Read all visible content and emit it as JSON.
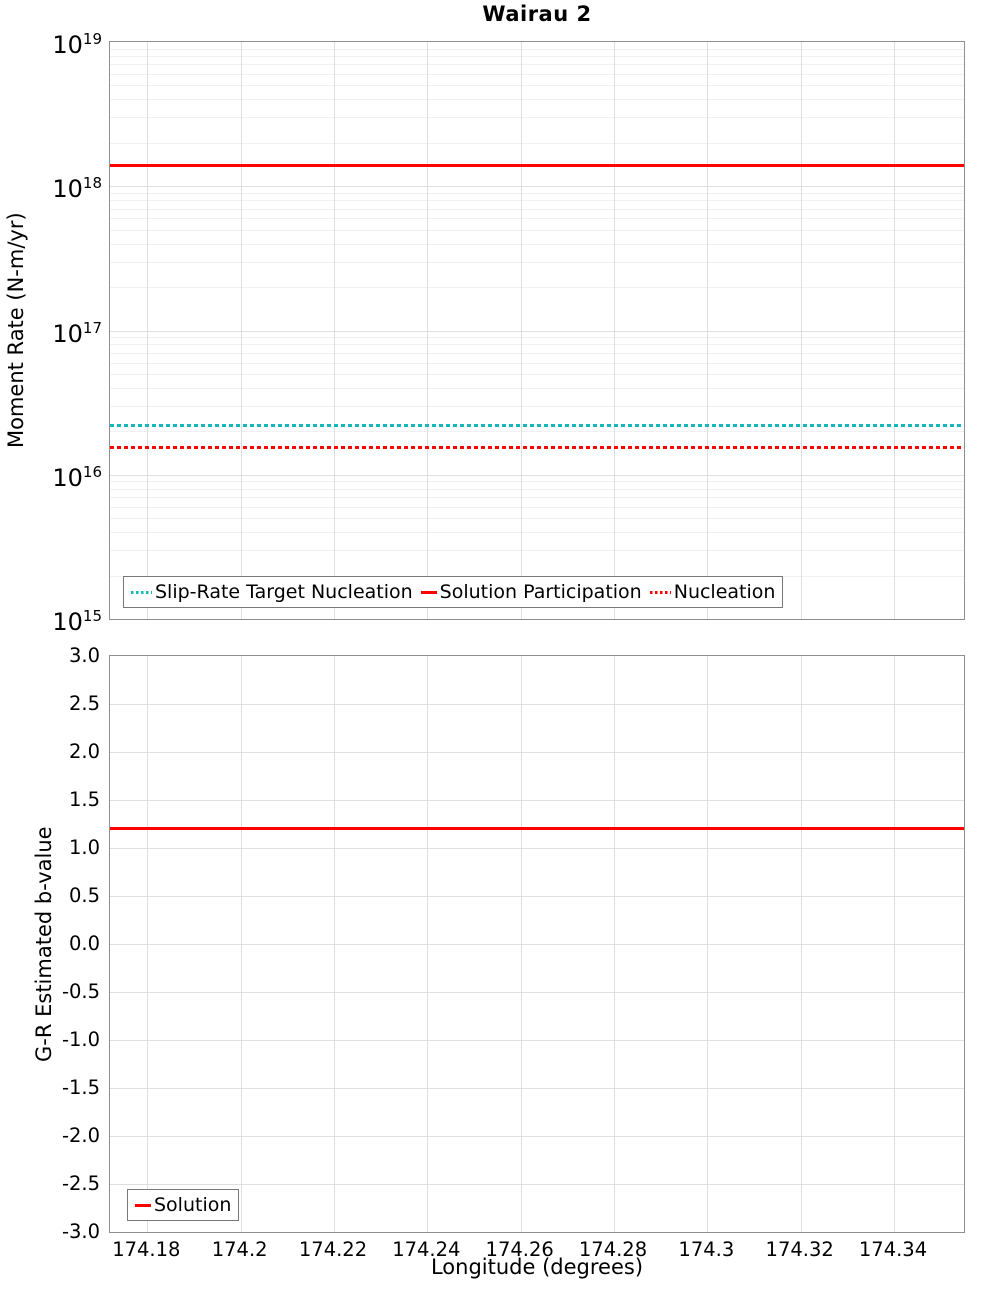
{
  "page": {
    "background": "#ffffff"
  },
  "colors": {
    "accent_red": "#ff0000",
    "accent_teal": "#14b8b8",
    "grid_major": "#dfdfdf",
    "grid_minor": "#f1f1f1",
    "axis_border": "#8f8f8f"
  },
  "chart_data": [
    {
      "type": "line",
      "title": "Wairau 2",
      "ylabel": "Moment Rate (N-m/yr)",
      "yscale": "log",
      "ylim": [
        1000000000000000.0,
        1e+19
      ],
      "ytick_exponents": [
        19,
        18,
        17,
        16,
        15
      ],
      "xlim": [
        174.172,
        174.355
      ],
      "xticks": [
        174.18,
        174.2,
        174.22,
        174.24,
        174.26,
        174.28,
        174.3,
        174.32,
        174.34
      ],
      "grid": true,
      "legend_position": "lower-left",
      "series": [
        {
          "name": "Slip-Rate Target Nucleation",
          "color": "#14b8b8",
          "style": "dotted",
          "value": 2.2e+16
        },
        {
          "name": "Solution Participation",
          "color": "#ff0000",
          "style": "solid",
          "value": 1.4e+18
        },
        {
          "name": "Nucleation",
          "color": "#ff0000",
          "style": "dotted",
          "value": 1.55e+16
        }
      ]
    },
    {
      "type": "line",
      "ylabel": "G-R Estimated b-value",
      "xlabel": "Longitude (degrees)",
      "yscale": "linear",
      "ylim": [
        -3.0,
        3.0
      ],
      "yticks": [
        3.0,
        2.5,
        2.0,
        1.5,
        1.0,
        0.5,
        0.0,
        -0.5,
        -1.0,
        -1.5,
        -2.0,
        -2.5,
        -3.0
      ],
      "xlim": [
        174.172,
        174.355
      ],
      "xticks": [
        174.18,
        174.2,
        174.22,
        174.24,
        174.26,
        174.28,
        174.3,
        174.32,
        174.34
      ],
      "xtick_labels": [
        "174.18",
        "174.2",
        "174.22",
        "174.24",
        "174.26",
        "174.28",
        "174.3",
        "174.32",
        "174.34"
      ],
      "grid": true,
      "legend_position": "lower-left",
      "series": [
        {
          "name": "Solution",
          "color": "#ff0000",
          "style": "solid",
          "value": 1.2
        }
      ]
    }
  ]
}
